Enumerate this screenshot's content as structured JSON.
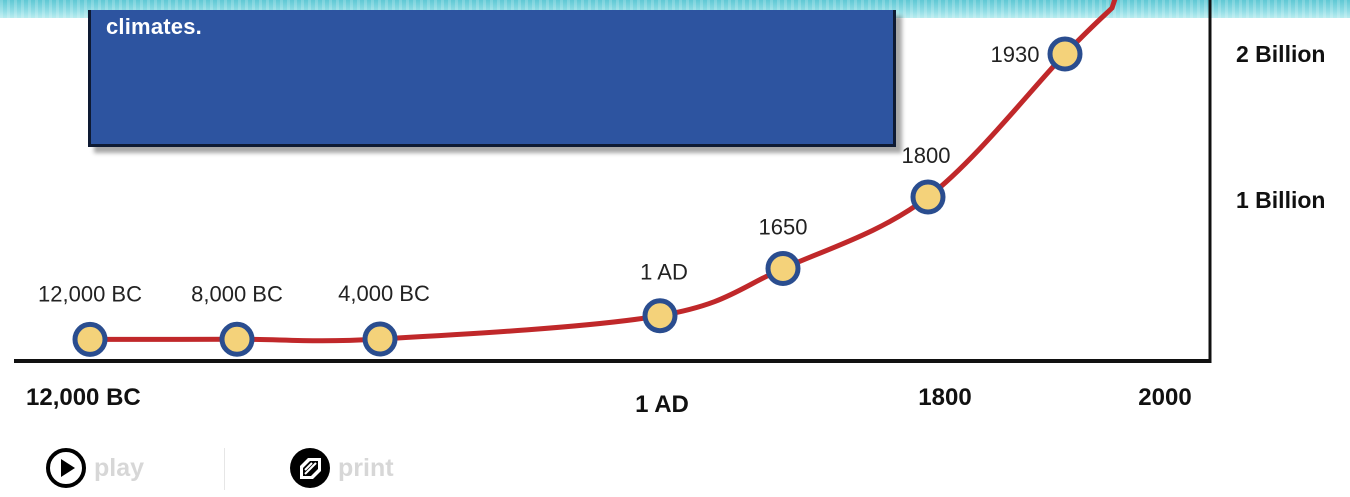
{
  "info_box": {
    "text": "climates."
  },
  "controls": {
    "play_label": "play",
    "print_label": "print"
  },
  "chart_data": {
    "type": "line",
    "title": "",
    "xlabel": "",
    "ylabel": "",
    "x_tick_labels": [
      "12,000 BC",
      "1 AD",
      "1800",
      "2000"
    ],
    "y_tick_labels": [
      "1 Billion",
      "2 Billion"
    ],
    "series": [
      {
        "points": [
          {
            "label": "12,000 BC",
            "year": -12000,
            "population_billion": 0.004
          },
          {
            "label": "8,000 BC",
            "year": -8000,
            "population_billion": 0.005
          },
          {
            "label": "4,000 BC",
            "year": -4000,
            "population_billion": 0.007
          },
          {
            "label": "1 AD",
            "year": 1,
            "population_billion": 0.17
          },
          {
            "label": "1650",
            "year": 1650,
            "population_billion": 0.5
          },
          {
            "label": "1800",
            "year": 1800,
            "population_billion": 1.0
          },
          {
            "label": "1930",
            "year": 1930,
            "population_billion": 2.0
          }
        ]
      }
    ],
    "colors": {
      "line": "#c0282a",
      "marker_fill": "#f4d27a",
      "marker_stroke": "#2a4d8f",
      "axis": "#111111"
    },
    "grid": false
  }
}
